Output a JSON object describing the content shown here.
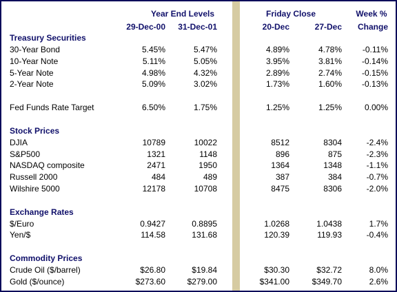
{
  "header": {
    "groups": [
      {
        "text": "Year End Levels",
        "center": 263
      },
      {
        "text": "Friday Close",
        "center": 420
      },
      {
        "text": "Week %",
        "center": 537
      }
    ],
    "columns": [
      "29-Dec-00",
      "31-Dec-01",
      "20-Dec",
      "27-Dec",
      "Change"
    ]
  },
  "sections": [
    {
      "title": "Treasury Securities",
      "rows": [
        {
          "label": "30-Year Bond",
          "values": [
            "5.45%",
            "5.47%",
            "4.89%",
            "4.78%",
            "-0.11%"
          ]
        },
        {
          "label": "10-Year Note",
          "values": [
            "5.11%",
            "5.05%",
            "3.95%",
            "3.81%",
            "-0.14%"
          ]
        },
        {
          "label": "5-Year Note",
          "values": [
            "4.98%",
            "4.32%",
            "2.89%",
            "2.74%",
            "-0.15%"
          ]
        },
        {
          "label": "2-Year Note",
          "values": [
            "5.09%",
            "3.02%",
            "1.73%",
            "1.60%",
            "-0.13%"
          ]
        }
      ]
    },
    {
      "rows": [
        {
          "label": "Fed Funds Rate Target",
          "values": [
            "6.50%",
            "1.75%",
            "1.25%",
            "1.25%",
            "0.00%"
          ]
        }
      ]
    },
    {
      "title": "Stock Prices",
      "rows": [
        {
          "label": "DJIA",
          "values": [
            "10789",
            "10022",
            "8512",
            "8304",
            "-2.4%"
          ]
        },
        {
          "label": "S&P500",
          "values": [
            "1321",
            "1148",
            "896",
            "875",
            "-2.3%"
          ]
        },
        {
          "label": "NASDAQ composite",
          "values": [
            "2471",
            "1950",
            "1364",
            "1348",
            "-1.1%"
          ]
        },
        {
          "label": "Russell 2000",
          "values": [
            "484",
            "489",
            "387",
            "384",
            "-0.7%"
          ]
        },
        {
          "label": "Wilshire 5000",
          "values": [
            "12178",
            "10708",
            "8475",
            "8306",
            "-2.0%"
          ]
        }
      ]
    },
    {
      "title": "Exchange Rates",
      "rows": [
        {
          "label": "$/Euro",
          "values": [
            "0.9427",
            "0.8895",
            "1.0268",
            "1.0438",
            "1.7%"
          ]
        },
        {
          "label": "Yen/$",
          "values": [
            "114.58",
            "131.68",
            "120.39",
            "119.93",
            "-0.4%"
          ]
        }
      ]
    },
    {
      "title": "Commodity Prices",
      "rows": [
        {
          "label": "Crude Oil ($/barrel)",
          "values": [
            "$26.80",
            "$19.84",
            "$30.30",
            "$32.72",
            "8.0%"
          ]
        },
        {
          "label": "Gold ($/ounce)",
          "values": [
            "$273.60",
            "$279.00",
            "$341.00",
            "$349.70",
            "2.6%"
          ]
        }
      ]
    }
  ]
}
